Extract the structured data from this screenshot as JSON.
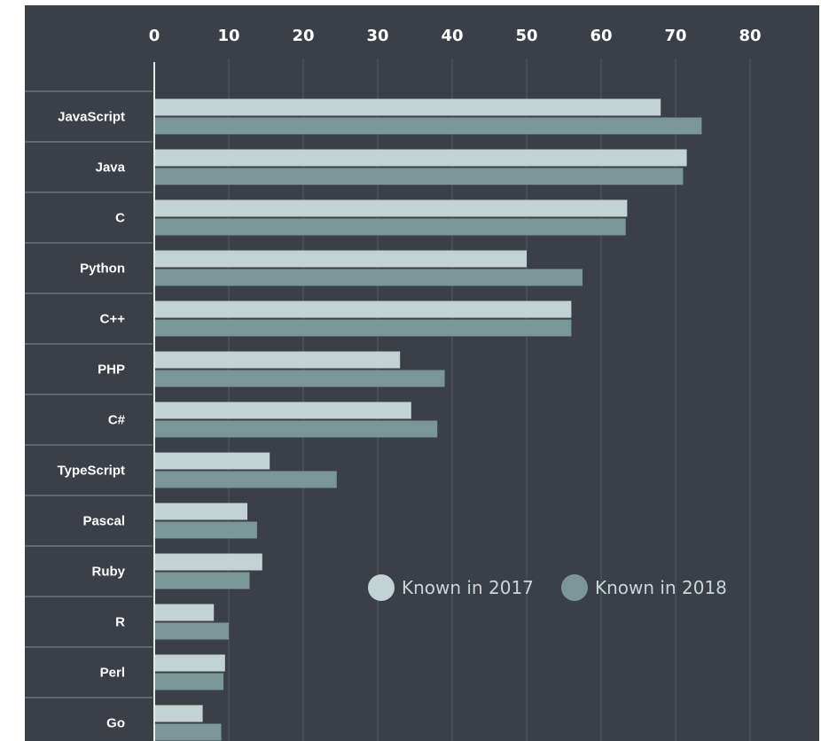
{
  "chart_data": {
    "type": "bar",
    "orientation": "horizontal",
    "categories": [
      "JavaScript",
      "Java",
      "C",
      "Python",
      "C++",
      "PHP",
      "C#",
      "TypeScript",
      "Pascal",
      "Ruby",
      "R",
      "Perl",
      "Go"
    ],
    "series": [
      {
        "name": "Known in 2017",
        "color": "#c3d2d3",
        "values": [
          68,
          71.5,
          63.5,
          50,
          56,
          33,
          34.5,
          15.5,
          12.5,
          14.5,
          8,
          9.5,
          6.5
        ]
      },
      {
        "name": "Known in 2018",
        "color": "#7b9696",
        "values": [
          73.5,
          71,
          63.3,
          57.5,
          56,
          39,
          38,
          24.5,
          13.8,
          12.8,
          10,
          9.3,
          9
        ]
      }
    ],
    "xlim": [
      0,
      80
    ],
    "xticks": [
      "0",
      "10",
      "20",
      "30",
      "40",
      "50",
      "60",
      "70",
      "80"
    ],
    "grid": true,
    "legend_position": "lower-right",
    "colors": {
      "background": "#3b3f48",
      "grid": "#545963",
      "separator": "#6c727c",
      "text": "#ffffff"
    }
  }
}
